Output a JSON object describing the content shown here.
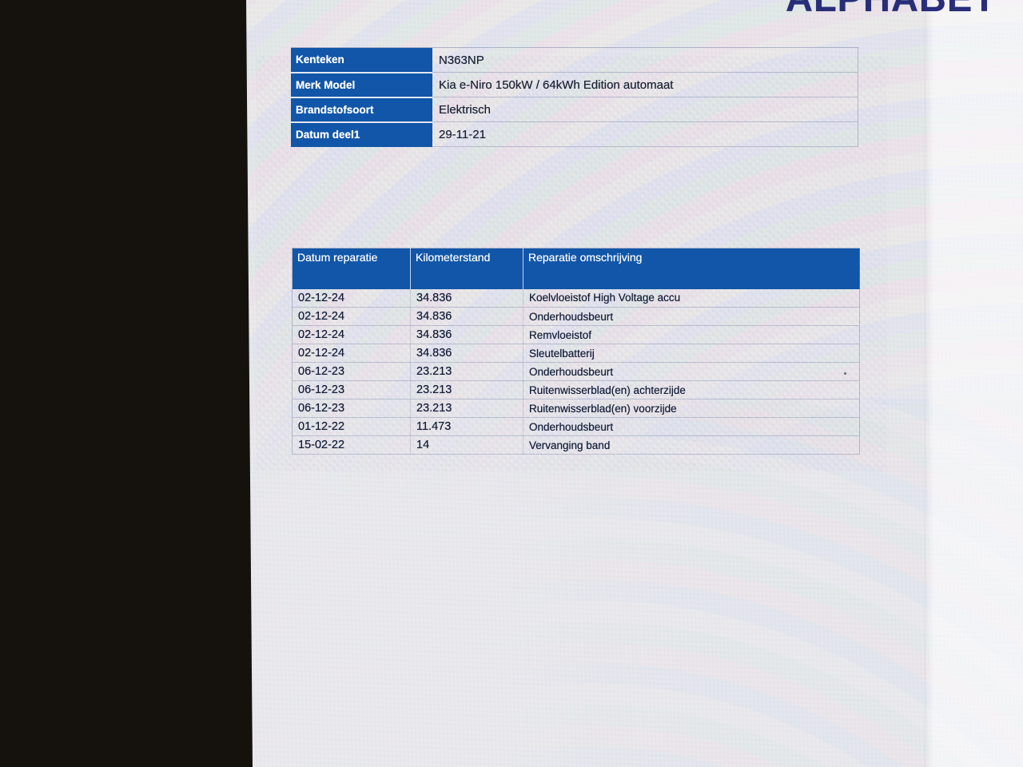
{
  "brand": {
    "logo_text": "ALPHABET"
  },
  "vehicle_info": {
    "rows": [
      {
        "label": "Kenteken",
        "value": "N363NP"
      },
      {
        "label": "Merk Model",
        "value": "Kia e-Niro 150kW / 64kWh Edition automaat"
      },
      {
        "label": "Brandstofsoort",
        "value": "Elektrisch"
      },
      {
        "label": "Datum deel1",
        "value": "29-11-21"
      }
    ]
  },
  "repair_table": {
    "columns": [
      "Datum reparatie",
      "Kilometerstand",
      "Reparatie omschrijving"
    ],
    "rows": [
      {
        "date": "02-12-24",
        "km": "34.836",
        "desc": "Koelvloeistof High Voltage accu"
      },
      {
        "date": "02-12-24",
        "km": "34.836",
        "desc": "Onderhoudsbeurt"
      },
      {
        "date": "02-12-24",
        "km": "34.836",
        "desc": "Remvloeistof"
      },
      {
        "date": "02-12-24",
        "km": "34.836",
        "desc": "Sleutelbatterij"
      },
      {
        "date": "06-12-23",
        "km": "23.213",
        "desc": "Onderhoudsbeurt"
      },
      {
        "date": "06-12-23",
        "km": "23.213",
        "desc": "Ruitenwisserblad(en) achterzijde"
      },
      {
        "date": "06-12-23",
        "km": "23.213",
        "desc": "Ruitenwisserblad(en) voorzijde"
      },
      {
        "date": "01-12-22",
        "km": "11.473",
        "desc": "Onderhoudsbeurt"
      },
      {
        "date": "15-02-22",
        "km": "14",
        "desc": "Vervanging band"
      }
    ]
  },
  "colors": {
    "header_blue": "#1156a8",
    "info_label_blue": "#1856a8",
    "logo_navy": "#272d78",
    "bezel_black": "#15120e",
    "page_bg": "#ebe9ee"
  }
}
